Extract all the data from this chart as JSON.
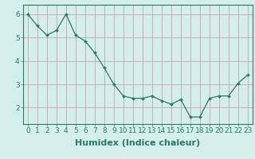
{
  "x": [
    0,
    1,
    2,
    3,
    4,
    5,
    6,
    7,
    8,
    9,
    10,
    11,
    12,
    13,
    14,
    15,
    16,
    17,
    18,
    19,
    20,
    21,
    22,
    23
  ],
  "y": [
    6.0,
    5.5,
    5.1,
    5.3,
    6.0,
    5.1,
    4.85,
    4.35,
    3.7,
    3.0,
    2.5,
    2.4,
    2.4,
    2.5,
    2.3,
    2.15,
    2.35,
    1.6,
    1.6,
    2.4,
    2.5,
    2.5,
    3.05,
    3.4
  ],
  "line_color": "#2a7a6a",
  "marker_color": "#2a7a6a",
  "background_color": "#d4eeea",
  "grid_color": "#c8a8a8",
  "xlabel": "Humidex (Indice chaleur)",
  "xlabel_fontsize": 8,
  "ylabel_ticks": [
    2,
    3,
    4,
    5,
    6
  ],
  "xlim": [
    -0.5,
    23.5
  ],
  "ylim": [
    1.3,
    6.4
  ],
  "tick_fontsize": 6.5,
  "xtick_labels": [
    "0",
    "1",
    "2",
    "3",
    "4",
    "5",
    "6",
    "7",
    "8",
    "9",
    "10",
    "11",
    "12",
    "13",
    "14",
    "15",
    "16",
    "17",
    "18",
    "19",
    "20",
    "21",
    "22",
    "23"
  ]
}
